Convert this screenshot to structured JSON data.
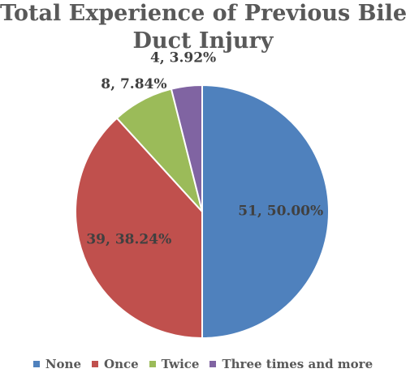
{
  "chart_data": {
    "type": "pie",
    "title_lines": [
      "Total Experience of Previous Bile",
      "Duct Injury"
    ],
    "categories": [
      "None",
      "Once",
      "Twice",
      "Three times and more"
    ],
    "values": [
      51,
      39,
      8,
      4
    ],
    "percent_labels": [
      "50.00%",
      "38.24%",
      "7.84%",
      "3.92%"
    ],
    "data_labels": [
      "51, 50.00%",
      "39, 38.24%",
      "8, 7.84%",
      "4, 3.92%"
    ],
    "colors": [
      "#4F81BD",
      "#C0504D",
      "#9BBB59",
      "#8064A2"
    ],
    "legend_position": "bottom"
  }
}
